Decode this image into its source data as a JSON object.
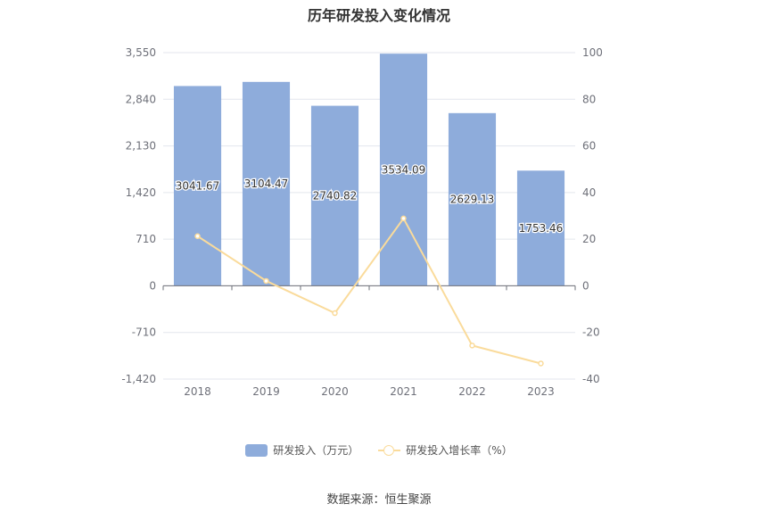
{
  "chart_data": {
    "title": "历年研发投入变化情况",
    "type": "bar",
    "categories": [
      "2018",
      "2019",
      "2020",
      "2021",
      "2022",
      "2023"
    ],
    "series": [
      {
        "name": "研发投入（万元）",
        "type": "bar",
        "axis": "left",
        "values": [
          3041.67,
          3104.47,
          2740.82,
          3534.09,
          2629.13,
          1753.46
        ],
        "labels": [
          "3041.67",
          "3104.47",
          "2740.82",
          "3534.09",
          "2629.13",
          "1753.46"
        ],
        "color": "#8eacdb"
      },
      {
        "name": "研发投入增长率（%）",
        "type": "line",
        "axis": "right",
        "values": [
          21.3,
          2.1,
          -11.7,
          28.9,
          -25.6,
          -33.3
        ],
        "color": "#fadb9b"
      }
    ],
    "y_left": {
      "min": -1420,
      "max": 3550,
      "ticks": [
        -1420,
        -710,
        0,
        710,
        1420,
        2130,
        2840,
        3550
      ],
      "tick_labels": [
        "-1,420",
        "-710",
        "0",
        "710",
        "1,420",
        "2,130",
        "2,840",
        "3,550"
      ]
    },
    "y_right": {
      "min": -40,
      "max": 100,
      "ticks": [
        -40,
        -20,
        0,
        20,
        40,
        60,
        80,
        100
      ],
      "tick_labels": [
        "-40",
        "-20",
        "0",
        "20",
        "40",
        "60",
        "80",
        "100"
      ]
    },
    "grid": true,
    "legend_position": "bottom-center"
  },
  "source_text": "数据来源：恒生聚源"
}
